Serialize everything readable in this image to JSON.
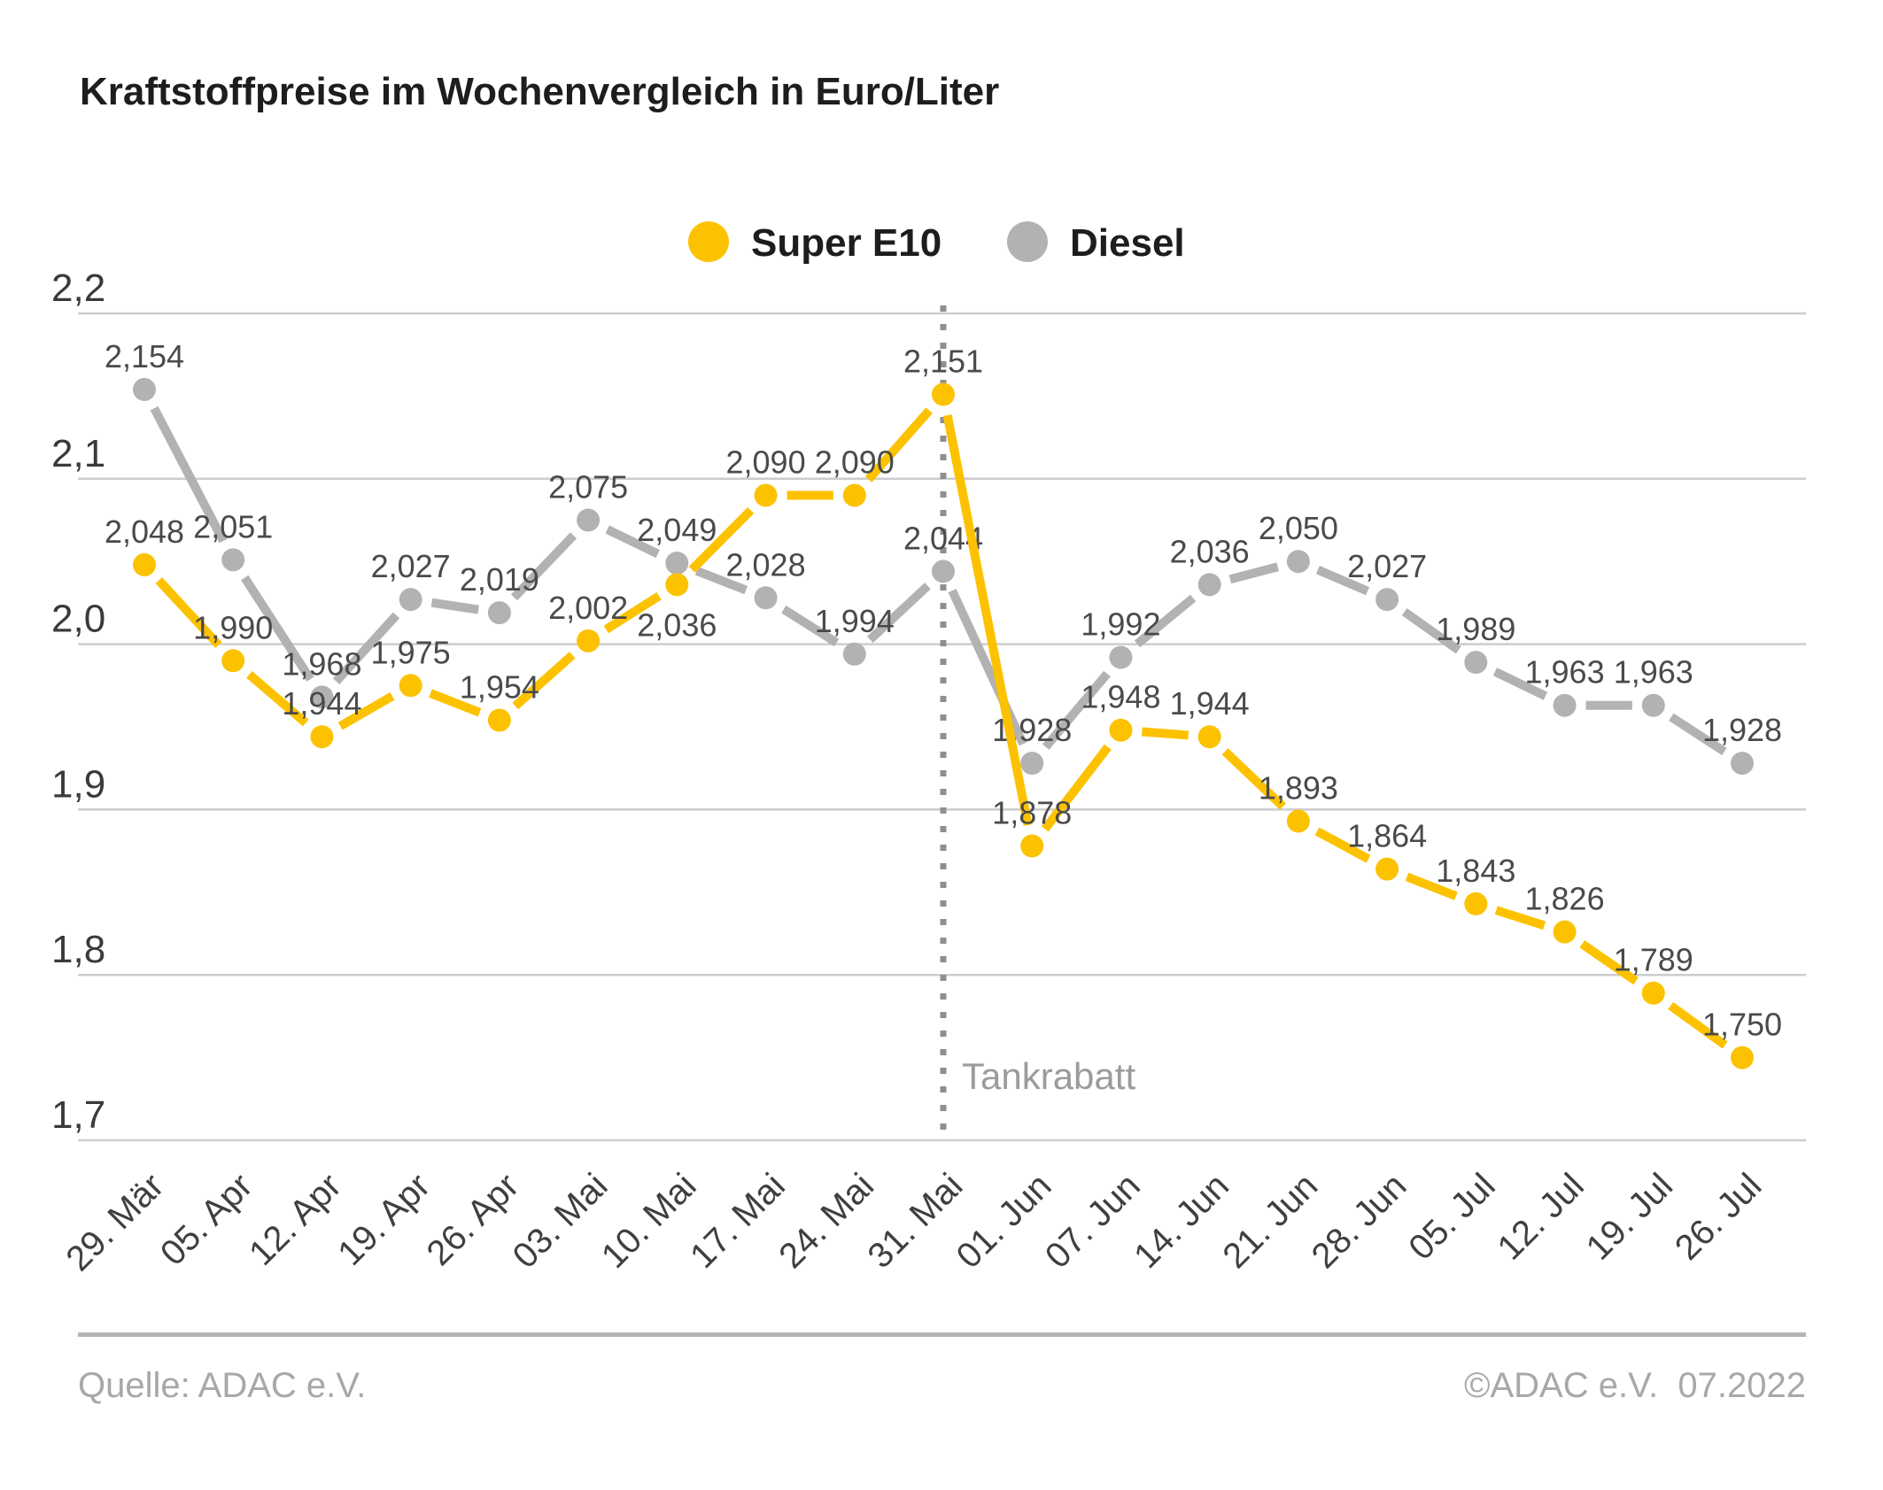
{
  "title": "Kraftstoffpreise im Wochenvergleich in Euro/Liter",
  "legend": [
    {
      "label": "Super E10",
      "color": "#FCC200"
    },
    {
      "label": "Diesel",
      "color": "#B2B2B2"
    }
  ],
  "annotation": {
    "label": "Tankrabatt"
  },
  "footer": {
    "source": "Quelle: ADAC e.V.",
    "copyright": "©ADAC e.V.  07.2022"
  },
  "colors": {
    "super_e10": "#FCC200",
    "diesel": "#B2B2B2",
    "gridline": "#cdcdcd",
    "vline": "#8f8f8f",
    "data_label": "#4a4a4a"
  },
  "chart_data": {
    "type": "line",
    "categories": [
      "29. Mär",
      "05. Apr",
      "12. Apr",
      "19. Apr",
      "26. Apr",
      "03. Mai",
      "10. Mai",
      "17. Mai",
      "24. Mai",
      "31. Mai",
      "01. Jun",
      "07. Jun",
      "14. Jun",
      "21. Jun",
      "28. Jun",
      "05. Jul",
      "12. Jul",
      "19. Jul",
      "26. Jul"
    ],
    "series": [
      {
        "name": "Super E10",
        "color": "#FCC200",
        "values": [
          2.048,
          1.99,
          1.944,
          1.975,
          1.954,
          2.002,
          2.036,
          2.09,
          2.09,
          2.151,
          1.878,
          1.948,
          1.944,
          1.893,
          1.864,
          1.843,
          1.826,
          1.789,
          1.75
        ],
        "labels": [
          "2,048",
          "1,990",
          "1,944",
          "1,975",
          "1,954",
          "2,002",
          "2,036",
          "2,090",
          "2,090",
          "2,151",
          "1,878",
          "1,948",
          "1,944",
          "1,893",
          "1,864",
          "1,843",
          "1,826",
          "1,789",
          "1,750"
        ]
      },
      {
        "name": "Diesel",
        "color": "#B2B2B2",
        "values": [
          2.154,
          2.051,
          1.968,
          2.027,
          2.019,
          2.075,
          2.049,
          2.028,
          1.994,
          2.044,
          1.928,
          1.992,
          2.036,
          2.05,
          2.027,
          1.989,
          1.963,
          1.963,
          1.928
        ],
        "labels": [
          "2,154",
          "2,051",
          "1,968",
          "2,027",
          "2,019",
          "2,075",
          "2,049",
          "2,028",
          "1,994",
          "2,044",
          "1,928",
          "1,992",
          "2,036",
          "2,050",
          "2,027",
          "1,989",
          "1,963",
          "1,963",
          "1,928"
        ]
      }
    ],
    "y_ticks": [
      "2,2",
      "2,1",
      "2,0",
      "1,9",
      "1,8",
      "1,7"
    ],
    "y_tick_values": [
      2.2,
      2.1,
      2.0,
      1.9,
      1.8,
      1.7
    ],
    "ylim": [
      1.7,
      2.2
    ],
    "grid": true,
    "legend_position": "top-center",
    "vline": {
      "category_index": 9,
      "label": "Tankrabatt",
      "style": "dotted"
    }
  }
}
